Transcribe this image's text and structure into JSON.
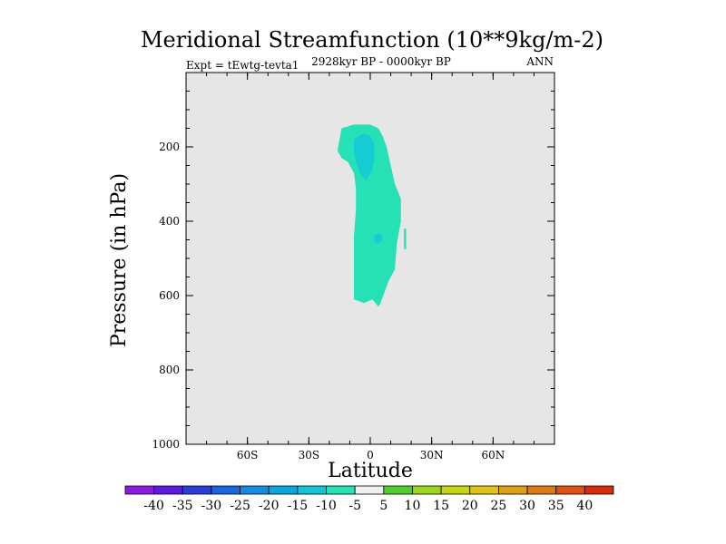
{
  "chart_data": {
    "type": "contour",
    "title": "Meridional Streamfunction (10**9kg/m-2)",
    "subtitle": "2928kyr BP - 0000kyr BP",
    "left_label": "Expt = tEwtg-tevta1",
    "right_label": "ANN",
    "xlabel": "Latitude",
    "ylabel": "Pressure (in hPa)",
    "xlim": [
      -90,
      90
    ],
    "ylim": [
      0,
      1000
    ],
    "y_reversed": true,
    "x_ticks": [
      {
        "value": -60,
        "label": "60S"
      },
      {
        "value": -30,
        "label": "30S"
      },
      {
        "value": 0,
        "label": "0"
      },
      {
        "value": 30,
        "label": "30N"
      },
      {
        "value": 60,
        "label": "60N"
      }
    ],
    "y_ticks": [
      {
        "value": 200,
        "label": "200"
      },
      {
        "value": 400,
        "label": "400"
      },
      {
        "value": 600,
        "label": "600"
      },
      {
        "value": 800,
        "label": "800"
      },
      {
        "value": 1000,
        "label": "1000"
      }
    ],
    "background_color": "#e6e6e6",
    "contour_levels": [
      {
        "lower": -10,
        "upper": -5,
        "color": "#26e0b6"
      },
      {
        "lower": -15,
        "upper": -10,
        "color": "#14ccd2"
      }
    ],
    "regions": [
      {
        "name": "band-minus-10-to-5",
        "color": "#26e0b6",
        "points": [
          [
            -14,
            150
          ],
          [
            -8,
            140
          ],
          [
            0,
            140
          ],
          [
            4,
            150
          ],
          [
            6,
            170
          ],
          [
            8,
            200
          ],
          [
            10,
            250
          ],
          [
            12,
            300
          ],
          [
            15,
            340
          ],
          [
            15,
            400
          ],
          [
            13,
            460
          ],
          [
            12,
            530
          ],
          [
            9,
            560
          ],
          [
            5,
            620
          ],
          [
            4,
            630
          ],
          [
            1,
            610
          ],
          [
            -3,
            620
          ],
          [
            -8,
            610
          ],
          [
            -8,
            530
          ],
          [
            -8,
            440
          ],
          [
            -7,
            370
          ],
          [
            -7,
            310
          ],
          [
            -8,
            270
          ],
          [
            -11,
            240
          ],
          [
            -14,
            230
          ],
          [
            -16,
            210
          ],
          [
            -15,
            180
          ]
        ]
      },
      {
        "name": "band-minus-15-to-10-upper",
        "color": "#14ccd2",
        "points": [
          [
            -8,
            180
          ],
          [
            -4,
            165
          ],
          [
            0,
            170
          ],
          [
            2,
            190
          ],
          [
            2,
            230
          ],
          [
            1,
            260
          ],
          [
            -2,
            290
          ],
          [
            -5,
            270
          ],
          [
            -7,
            240
          ],
          [
            -8,
            210
          ]
        ]
      },
      {
        "name": "band-minus-15-to-10-lower",
        "color": "#14ccd2",
        "points": [
          [
            2,
            438
          ],
          [
            4,
            432
          ],
          [
            6,
            438
          ],
          [
            6,
            450
          ],
          [
            4,
            460
          ],
          [
            2,
            455
          ]
        ]
      },
      {
        "name": "band-minus-10-to-5-sliver",
        "color": "#26e0b6",
        "points": [
          [
            16.5,
            420
          ],
          [
            17.5,
            420
          ],
          [
            17.5,
            475
          ],
          [
            16.5,
            475
          ]
        ]
      }
    ],
    "colorbar": {
      "levels": [
        -40,
        -35,
        -30,
        -25,
        -20,
        -15,
        -10,
        -5,
        5,
        10,
        15,
        20,
        25,
        30,
        35,
        40
      ],
      "labels": [
        "-40",
        "-35",
        "-30",
        "-25",
        "-20",
        "-15",
        "-10",
        "-5",
        "5",
        "10",
        "15",
        "20",
        "25",
        "30",
        "35",
        "40"
      ],
      "colors": [
        "#8c1ae0",
        "#5a1ae0",
        "#2b3cd8",
        "#1a66e0",
        "#148ce6",
        "#0ca6de",
        "#14c3d6",
        "#26e0b6",
        "#f0f0f0",
        "#4ccf2e",
        "#9ad61a",
        "#c8d414",
        "#e0c21a",
        "#e0a014",
        "#e07814",
        "#e05014",
        "#d82a0c"
      ]
    }
  }
}
